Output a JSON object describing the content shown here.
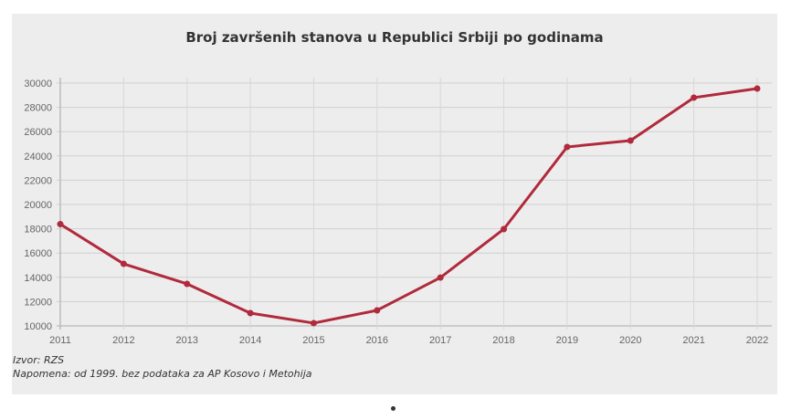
{
  "chart_data": {
    "type": "line",
    "title": "Broj završenih stanova u Republici Srbiji po godinama",
    "xlabel": "",
    "ylabel": "",
    "categories": [
      "2011",
      "2012",
      "2013",
      "2014",
      "2015",
      "2016",
      "2017",
      "2018",
      "2019",
      "2020",
      "2021",
      "2022"
    ],
    "series": [
      {
        "name": "Broj završenih stanova",
        "values": [
          18380,
          15110,
          13460,
          11050,
          10230,
          11280,
          13980,
          17970,
          24740,
          25260,
          28800,
          29550
        ]
      }
    ],
    "ylim": [
      10000,
      30000
    ],
    "yticks": [
      "10000",
      "12000",
      "14000",
      "16000",
      "18000",
      "20000",
      "22000",
      "24000",
      "26000",
      "28000",
      "30000"
    ],
    "grid": true,
    "line_color": "#b02a3c"
  },
  "footer": {
    "source": "Izvor: RZS",
    "note": "Napomena: od 1999. bez podataka za AP Kosovo i Metohija"
  }
}
